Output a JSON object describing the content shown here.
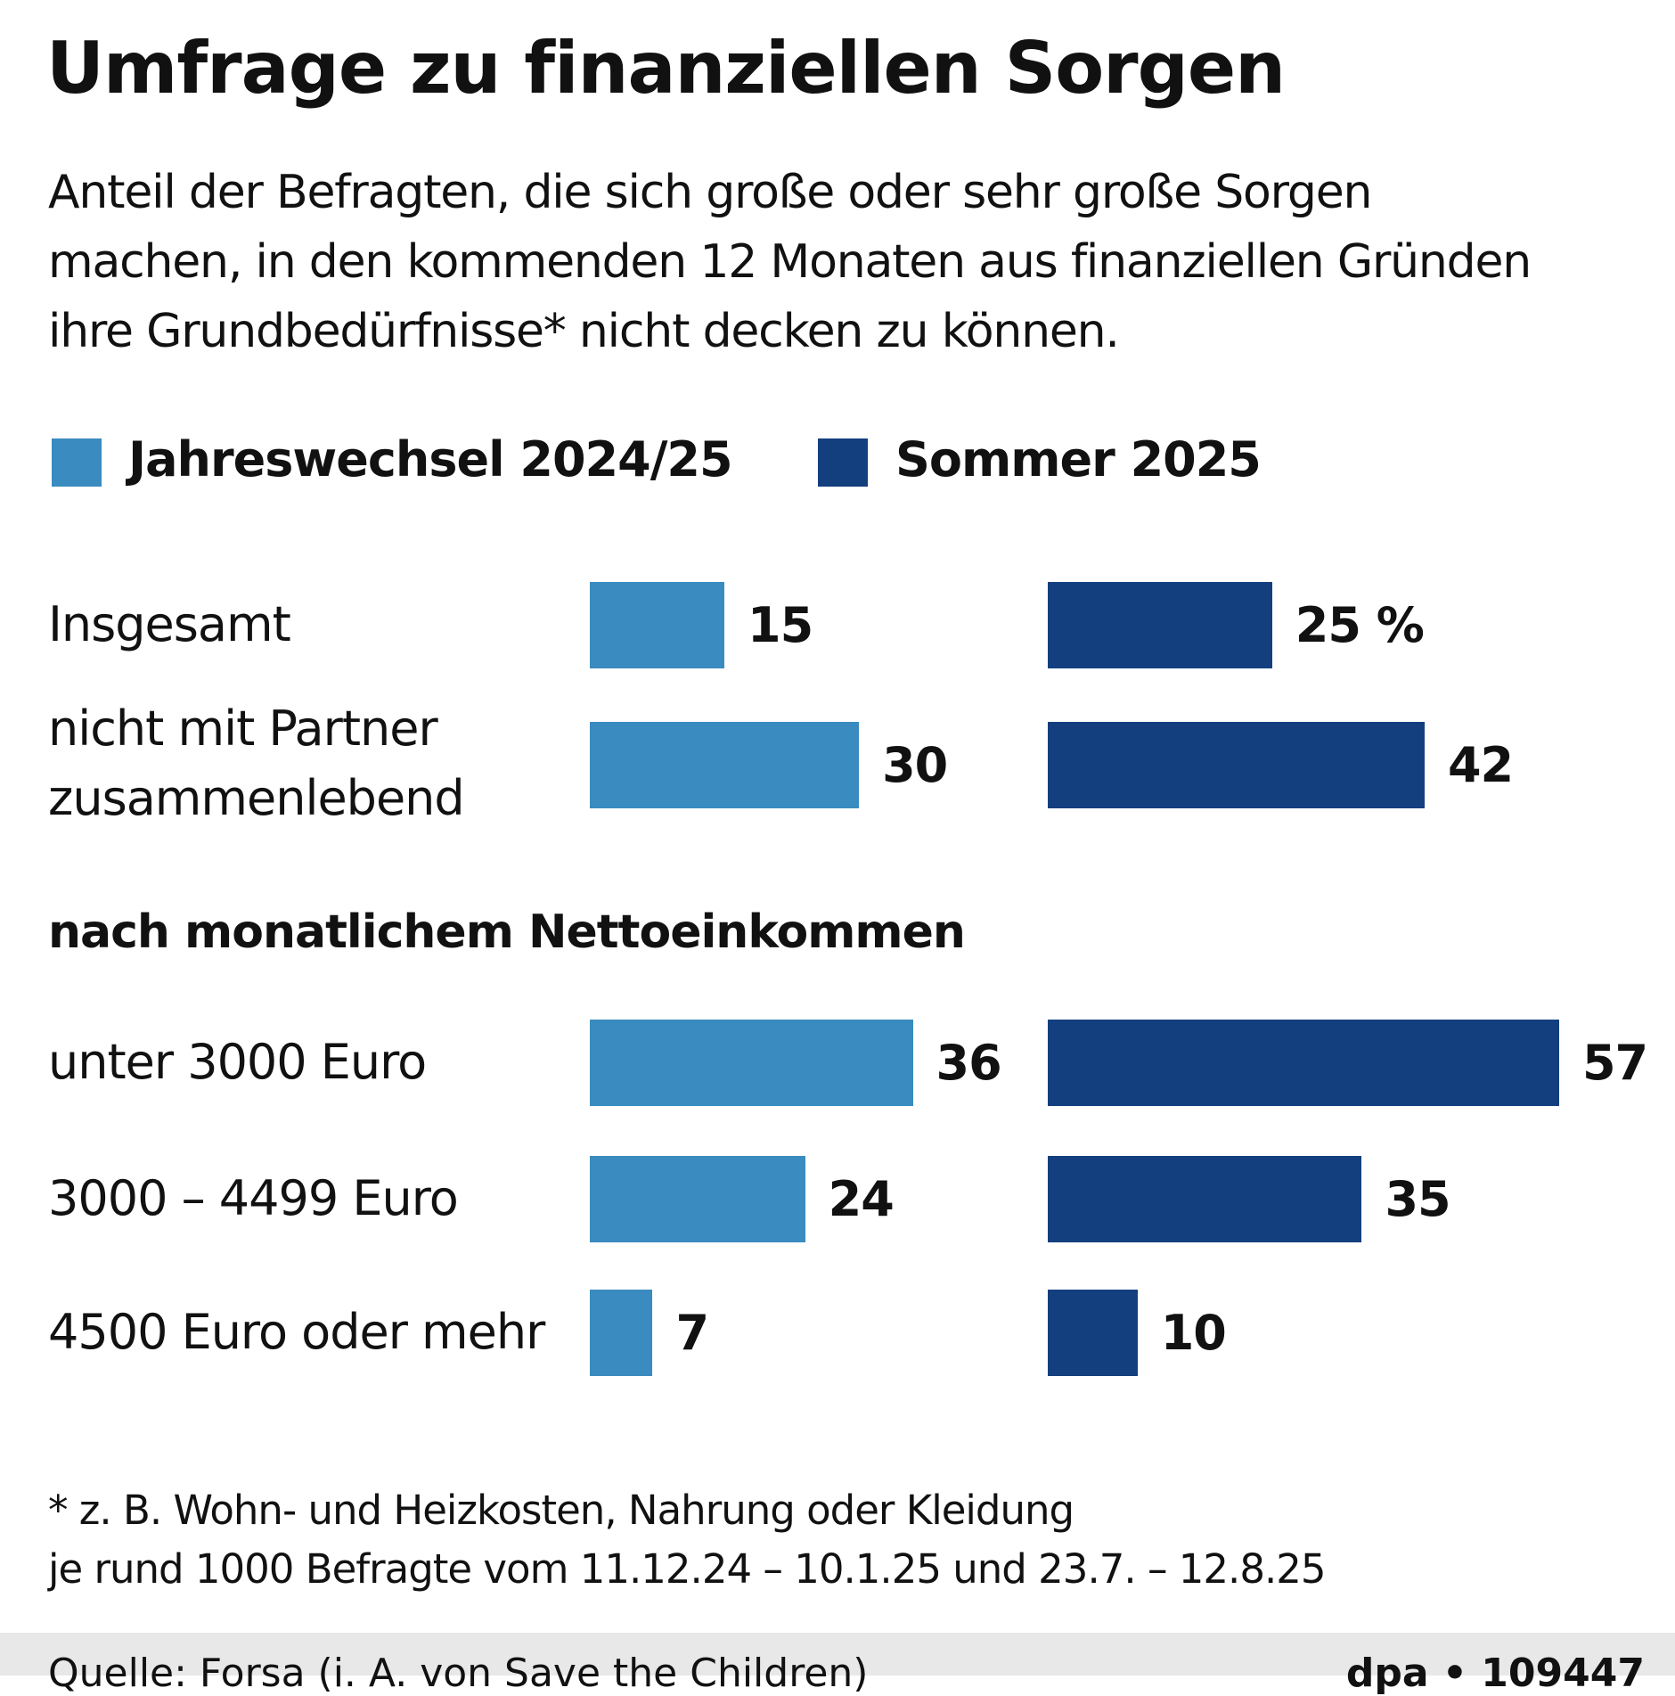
{
  "title": "Umfrage zu finanziellen Sorgen",
  "subtitle_lines": [
    "Anteil der Befragten, die sich große oder sehr große Sorgen",
    "machen, in den kommenden 12 Monaten aus finanziellen Gründen",
    "ihre Grundbedürfnisse* nicht decken zu können."
  ],
  "chart_data": {
    "type": "bar",
    "orientation": "horizontal",
    "unit": "%",
    "legend_position": "top",
    "section_heading": "nach monatlichem Nettoeinkommen",
    "categories": [
      "Insgesamt",
      "nicht mit Partner zusammenlebend",
      "unter 3000 Euro",
      "3000 – 4499 Euro",
      "4500 Euro oder mehr"
    ],
    "category_lines": [
      [
        "Insgesamt"
      ],
      [
        "nicht mit Partner",
        "zusammenlebend"
      ],
      [
        "unter 3000 Euro"
      ],
      [
        "3000 – 4499 Euro"
      ],
      [
        "4500 Euro oder mehr"
      ]
    ],
    "series": [
      {
        "name": "Jahreswechsel 2024/25",
        "color": "#3a8bbf",
        "values": [
          15,
          30,
          36,
          24,
          7
        ]
      },
      {
        "name": "Sommer 2025",
        "color": "#143f7f",
        "values": [
          25,
          42,
          57,
          35,
          10
        ]
      }
    ],
    "value_labels": [
      [
        "15",
        "30",
        "36",
        "24",
        "7"
      ],
      [
        "25 %",
        "42",
        "57",
        "35",
        "10"
      ]
    ]
  },
  "footnotes": [
    "* z. B. Wohn- und Heizkosten, Nahrung oder Kleidung",
    "je rund 1000 Befragte vom 11.12.24 – 10.1.25 und 23.7. – 12.8.25"
  ],
  "source": "Quelle: Forsa (i. A. von Save the Children)",
  "credit": "dpa • 109447"
}
